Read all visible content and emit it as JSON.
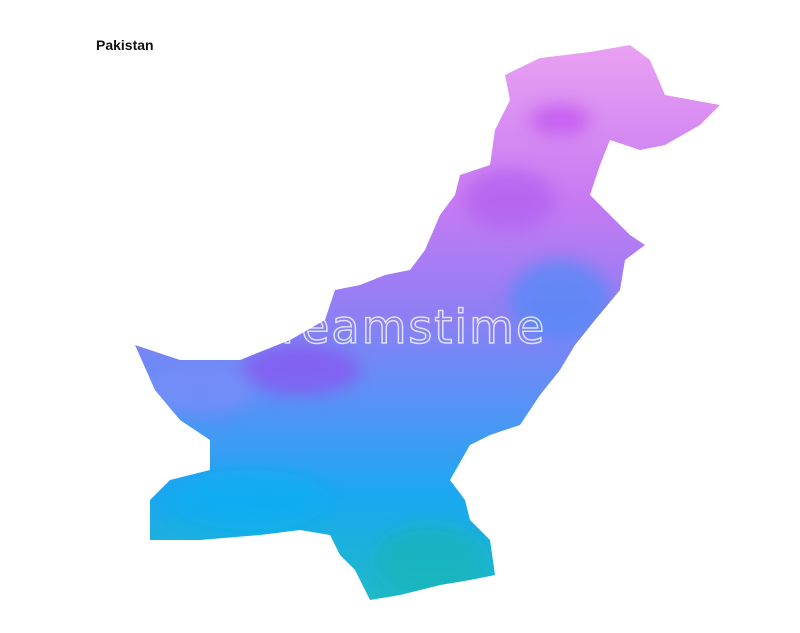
{
  "map": {
    "title": "Pakistan",
    "region": "Pakistan",
    "style": "watercolor",
    "colors": {
      "north": "#eaa2f2",
      "upper_middle": "#a468f2",
      "middle": "#6f86f6",
      "lower": "#1aa8f0",
      "south": "#1fbcc4"
    }
  },
  "watermark": "dreamstime"
}
